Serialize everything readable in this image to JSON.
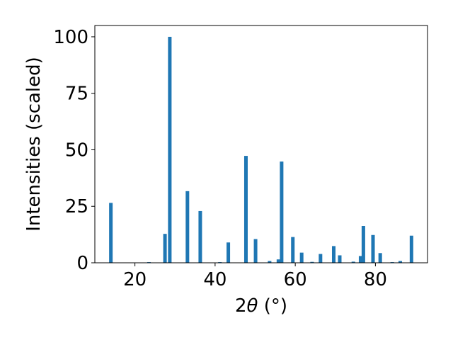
{
  "chart_data": {
    "type": "bar",
    "title": "",
    "xlabel_pre": "2",
    "xlabel_symbol": "θ",
    "xlabel_unit": " (°)",
    "ylabel": "Intensities (scaled)",
    "xlim": [
      10,
      93
    ],
    "ylim": [
      0,
      105
    ],
    "xticks": [
      20,
      40,
      60,
      80
    ],
    "yticks": [
      0,
      25,
      50,
      75,
      100
    ],
    "grid": false,
    "legend": false,
    "bar_color": "#1f77b4",
    "x": [
      14.0,
      23.5,
      27.5,
      28.7,
      33.1,
      36.3,
      41.2,
      43.3,
      47.7,
      50.1,
      53.6,
      55.8,
      56.6,
      59.4,
      61.6,
      64.2,
      66.3,
      69.6,
      71.1,
      74.5,
      76.3,
      77.0,
      79.4,
      81.2,
      84.2,
      86.2,
      89.0
    ],
    "values": [
      26.5,
      0.3,
      12.8,
      100.0,
      31.7,
      22.9,
      0.3,
      9.0,
      47.3,
      10.5,
      0.8,
      1.5,
      44.8,
      11.4,
      4.5,
      0.4,
      3.9,
      7.4,
      3.3,
      0.5,
      3.0,
      16.3,
      12.3,
      4.3,
      0.3,
      0.8,
      12.0
    ]
  }
}
